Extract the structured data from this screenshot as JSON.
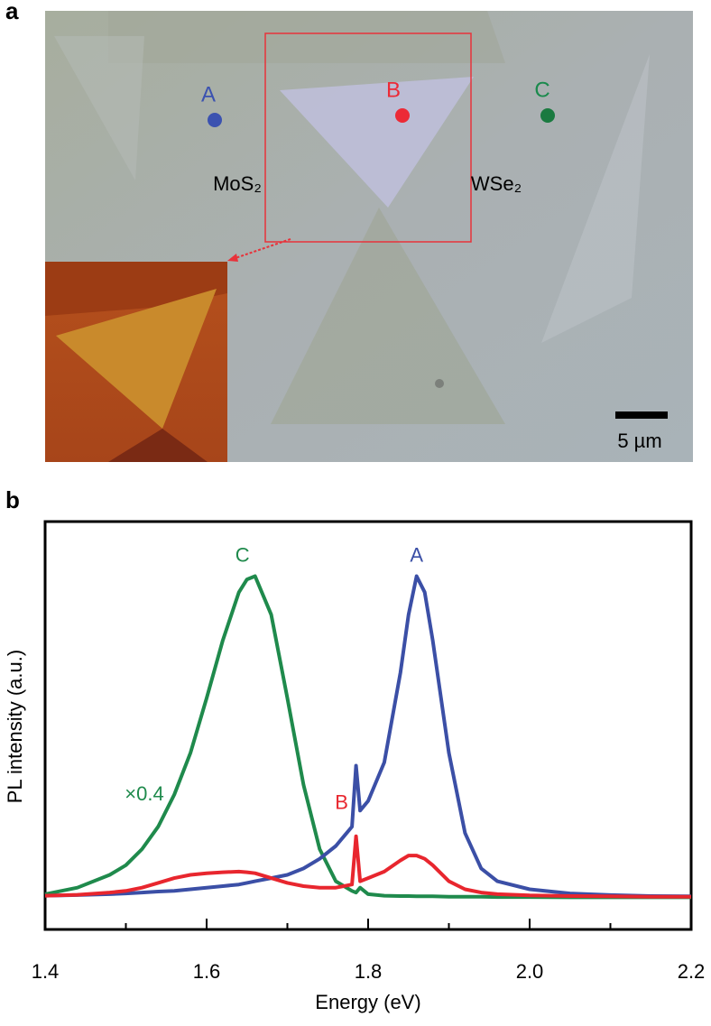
{
  "panel_a": {
    "label": "a",
    "points": [
      "A",
      "B",
      "C"
    ],
    "materials": [
      "MoS₂",
      "WSe₂"
    ],
    "scale_bar": "5 µm"
  },
  "chart_data": {
    "type": "line",
    "panel_label": "b",
    "x_label": "Energy (eV)",
    "y_label": "PL intensity (a.u.)",
    "annotations": [
      {
        "text": "×0.4",
        "color": "#1f8a4c"
      }
    ],
    "x": [
      1.4,
      1.44,
      1.48,
      1.5,
      1.52,
      1.54,
      1.56,
      1.58,
      1.6,
      1.62,
      1.64,
      1.65,
      1.66,
      1.68,
      1.7,
      1.72,
      1.74,
      1.76,
      1.78,
      1.785,
      1.79,
      1.8,
      1.82,
      1.84,
      1.85,
      1.86,
      1.87,
      1.88,
      1.9,
      1.92,
      1.94,
      1.96,
      2.0,
      2.05,
      2.1,
      2.15,
      2.2
    ],
    "series": [
      {
        "name": "C",
        "color": "#1f8a4c",
        "values": [
          0.01,
          0.03,
          0.07,
          0.1,
          0.15,
          0.22,
          0.32,
          0.45,
          0.62,
          0.8,
          0.95,
          0.99,
          1.0,
          0.88,
          0.62,
          0.35,
          0.15,
          0.05,
          0.02,
          0.015,
          0.03,
          0.01,
          0.005,
          0.004,
          0.004,
          0.003,
          0.003,
          0.003,
          0.002,
          0.002,
          0.002,
          0.001,
          0.001,
          0,
          0,
          0,
          0
        ]
      },
      {
        "name": "A",
        "color": "#3b4fa6",
        "values": [
          0.005,
          0.007,
          0.01,
          0.012,
          0.015,
          0.018,
          0.02,
          0.025,
          0.03,
          0.035,
          0.04,
          0.045,
          0.05,
          0.06,
          0.07,
          0.09,
          0.12,
          0.16,
          0.22,
          0.41,
          0.27,
          0.3,
          0.42,
          0.7,
          0.88,
          1.0,
          0.95,
          0.8,
          0.45,
          0.2,
          0.09,
          0.05,
          0.025,
          0.012,
          0.007,
          0.004,
          0.003
        ]
      },
      {
        "name": "B",
        "color": "#e8262e",
        "values": [
          0.005,
          0.008,
          0.015,
          0.02,
          0.03,
          0.045,
          0.06,
          0.07,
          0.075,
          0.078,
          0.08,
          0.078,
          0.075,
          0.06,
          0.045,
          0.035,
          0.03,
          0.03,
          0.04,
          0.19,
          0.05,
          0.06,
          0.08,
          0.115,
          0.13,
          0.13,
          0.12,
          0.1,
          0.05,
          0.025,
          0.015,
          0.01,
          0.006,
          0.004,
          0.003,
          0.002,
          0.002
        ]
      }
    ],
    "xlim": [
      1.4,
      2.2
    ],
    "xticks": [
      1.4,
      1.6,
      1.8,
      {
        "value": 2.0,
        "label": "2.0"
      },
      2.2
    ],
    "xminorticks": [
      1.5,
      1.7,
      1.9,
      2.1
    ],
    "ylim": [
      -0.1,
      1.17
    ]
  }
}
